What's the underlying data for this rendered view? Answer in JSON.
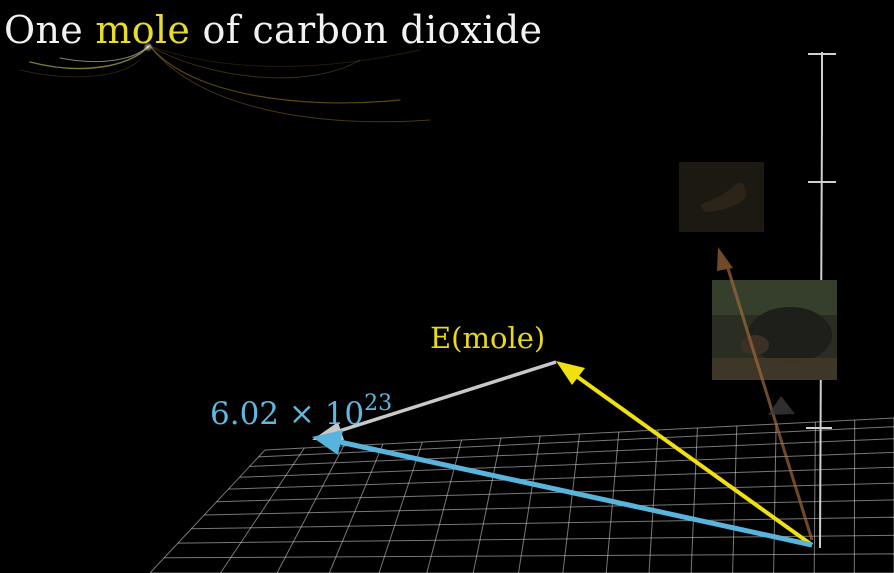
{
  "title": {
    "before": "One ",
    "highlight": "mole",
    "after": " of carbon dioxide"
  },
  "labels": {
    "e_mole": "E(mole)",
    "number_base": "6.02 × 10",
    "number_exponent": "23"
  },
  "colors": {
    "title_text": "#f2f2f2",
    "highlight": "#e6dc2e",
    "e_mole_label": "#e8d81e",
    "number_label": "#5fb8e0",
    "yellow_vector": "#f0e010",
    "gray_vector": "#c8c8c8",
    "blue_vector": "#58b4dc",
    "brown_vector": "#a06a3a",
    "grid": "#d8d8d8",
    "background": "#000000"
  }
}
